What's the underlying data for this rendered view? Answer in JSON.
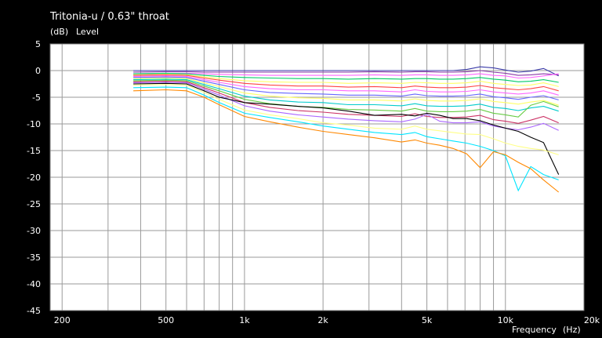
{
  "chart_data": {
    "type": "line",
    "title": "Tritonia-u / 0.63\" throat",
    "ylabel_unit": "(dB)",
    "ylabel": "Level",
    "xlabel": "Frequency",
    "xlabel_unit": "(Hz)",
    "x_scale": "log",
    "xlim": [
      180,
      20000
    ],
    "ylim": [
      -45,
      5
    ],
    "grid": true,
    "x_ticks": [
      {
        "value": 200,
        "label": "200"
      },
      {
        "value": 500,
        "label": "500"
      },
      {
        "value": 1000,
        "label": "1k"
      },
      {
        "value": 2000,
        "label": "2k"
      },
      {
        "value": 5000,
        "label": "5k"
      },
      {
        "value": 10000,
        "label": "10k"
      },
      {
        "value": 20000,
        "label": "20k"
      }
    ],
    "y_ticks": [
      5,
      0,
      -5,
      -10,
      -15,
      -20,
      -25,
      -30,
      -35,
      -40,
      -45
    ],
    "x": [
      375,
      500,
      600,
      700,
      800,
      1000,
      1250,
      1600,
      2000,
      2500,
      3150,
      4000,
      4500,
      5000,
      5600,
      6300,
      7100,
      8000,
      9000,
      10000,
      11200,
      12500,
      14000,
      16000
    ],
    "series": [
      {
        "color": "#3a3aa8",
        "values": [
          0.0,
          0.0,
          0.0,
          0.0,
          0.0,
          0.0,
          0.0,
          0.0,
          0.0,
          0.0,
          0.0,
          0.0,
          0.0,
          0.0,
          0.0,
          0.0,
          0.2,
          0.7,
          0.5,
          0.1,
          -0.3,
          -0.1,
          0.4,
          -1.0
        ]
      },
      {
        "color": "#8a3aa8",
        "values": [
          -0.3,
          -0.2,
          -0.2,
          -0.3,
          -0.3,
          -0.3,
          -0.3,
          -0.3,
          -0.3,
          -0.3,
          -0.2,
          -0.3,
          -0.2,
          -0.2,
          -0.3,
          -0.3,
          -0.2,
          0.0,
          -0.3,
          -0.5,
          -0.9,
          -0.8,
          -0.6,
          -0.8
        ]
      },
      {
        "color": "#ff66ff",
        "values": [
          -0.6,
          -0.5,
          -0.5,
          -0.6,
          -0.7,
          -0.8,
          -0.9,
          -0.9,
          -0.9,
          -0.9,
          -0.8,
          -0.9,
          -0.8,
          -0.8,
          -0.9,
          -0.9,
          -0.8,
          -0.6,
          -0.9,
          -1.0,
          -1.4,
          -1.3,
          -1.0,
          -0.6
        ]
      },
      {
        "color": "#00cc66",
        "values": [
          -0.6,
          -0.5,
          -0.6,
          -0.9,
          -1.1,
          -1.3,
          -1.4,
          -1.5,
          -1.5,
          -1.6,
          -1.5,
          -1.6,
          -1.5,
          -1.5,
          -1.6,
          -1.6,
          -1.5,
          -1.3,
          -1.6,
          -1.8,
          -2.1,
          -2.0,
          -1.7,
          -2.2
        ]
      },
      {
        "color": "#ffff66",
        "values": [
          -0.8,
          -0.7,
          -0.8,
          -1.2,
          -1.5,
          -1.9,
          -2.1,
          -2.2,
          -2.2,
          -2.4,
          -2.3,
          -2.4,
          -2.2,
          -2.3,
          -2.4,
          -2.4,
          -2.3,
          -2.0,
          -2.4,
          -2.6,
          -2.8,
          -2.7,
          -2.3,
          -3.0
        ]
      },
      {
        "color": "#ff4444",
        "values": [
          -0.9,
          -0.8,
          -0.9,
          -1.4,
          -1.8,
          -2.4,
          -2.7,
          -2.9,
          -2.9,
          -3.1,
          -3.0,
          -3.2,
          -2.9,
          -3.1,
          -3.2,
          -3.2,
          -3.1,
          -2.8,
          -3.2,
          -3.4,
          -3.6,
          -3.4,
          -3.0,
          -3.8
        ]
      },
      {
        "color": "#ff66ff",
        "values": [
          -1.1,
          -1.0,
          -1.1,
          -1.7,
          -2.2,
          -3.0,
          -3.4,
          -3.6,
          -3.6,
          -3.8,
          -3.8,
          -4.0,
          -3.6,
          -3.9,
          -4.0,
          -4.0,
          -3.9,
          -3.6,
          -4.0,
          -4.2,
          -4.4,
          -4.2,
          -3.8,
          -4.6
        ]
      },
      {
        "color": "#6666ff",
        "values": [
          -1.3,
          -1.2,
          -1.3,
          -2.0,
          -2.6,
          -3.6,
          -4.1,
          -4.3,
          -4.4,
          -4.6,
          -4.6,
          -4.8,
          -4.4,
          -4.7,
          -4.8,
          -4.8,
          -4.7,
          -4.4,
          -4.9,
          -5.1,
          -5.4,
          -5.0,
          -4.7,
          -5.5
        ]
      },
      {
        "color": "#ffff66",
        "values": [
          -1.5,
          -1.4,
          -1.5,
          -2.3,
          -3.0,
          -4.2,
          -4.8,
          -5.1,
          -5.2,
          -5.5,
          -5.5,
          -5.7,
          -5.3,
          -5.6,
          -5.7,
          -5.7,
          -5.6,
          -5.3,
          -5.8,
          -6.0,
          -6.3,
          -5.9,
          -5.6,
          -6.5
        ]
      },
      {
        "color": "#00cccc",
        "values": [
          -1.7,
          -1.6,
          -1.7,
          -2.6,
          -3.4,
          -4.8,
          -5.5,
          -5.9,
          -6.0,
          -6.4,
          -6.4,
          -6.6,
          -6.2,
          -6.6,
          -6.7,
          -6.7,
          -6.6,
          -6.3,
          -6.9,
          -7.1,
          -7.5,
          -7.0,
          -6.7,
          -7.6
        ]
      },
      {
        "color": "#66cc44",
        "values": [
          -1.9,
          -1.8,
          -1.9,
          -2.9,
          -3.8,
          -5.4,
          -6.2,
          -6.7,
          -6.9,
          -7.3,
          -7.4,
          -7.6,
          -7.1,
          -7.6,
          -7.7,
          -7.7,
          -7.6,
          -7.3,
          -8.0,
          -8.3,
          -8.7,
          -6.5,
          -5.8,
          -6.8
        ]
      },
      {
        "color": "#cc3366",
        "values": [
          -2.1,
          -2.0,
          -2.1,
          -3.2,
          -4.2,
          -6.0,
          -6.9,
          -7.5,
          -7.8,
          -8.2,
          -8.4,
          -8.6,
          -8.1,
          -8.6,
          -8.8,
          -8.8,
          -8.7,
          -8.4,
          -9.2,
          -9.5,
          -9.9,
          -9.3,
          -8.6,
          -9.8
        ]
      },
      {
        "color": "#aa66ff",
        "values": [
          -2.3,
          -2.2,
          -2.3,
          -3.5,
          -4.6,
          -6.6,
          -7.6,
          -8.3,
          -8.7,
          -9.1,
          -9.4,
          -9.6,
          -9.1,
          -8.2,
          -9.5,
          -9.8,
          -9.8,
          -9.6,
          -10.4,
          -10.8,
          -11.1,
          -10.6,
          -9.9,
          -11.2
        ]
      },
      {
        "color": "#000000",
        "values": [
          -2.5,
          -2.4,
          -2.5,
          -3.8,
          -5.0,
          -6.0,
          -6.3,
          -6.7,
          -7.0,
          -7.6,
          -8.4,
          -8.2,
          -8.5,
          -8.0,
          -8.4,
          -9.0,
          -9.0,
          -9.4,
          -10.2,
          -10.8,
          -11.4,
          -12.5,
          -13.5,
          -19.5
        ]
      },
      {
        "color": "#ffff88",
        "values": [
          -2.7,
          -2.6,
          -2.7,
          -4.1,
          -5.4,
          -7.4,
          -8.3,
          -9.0,
          -9.8,
          -10.2,
          -10.8,
          -11.0,
          -10.4,
          -11.0,
          -11.3,
          -11.6,
          -11.9,
          -12.0,
          -12.8,
          -13.6,
          -14.2,
          -14.6,
          -14.9,
          -15.8
        ]
      },
      {
        "color": "#00e5ff",
        "values": [
          -3.2,
          -3.1,
          -3.2,
          -4.6,
          -6.0,
          -8.0,
          -8.8,
          -9.6,
          -10.4,
          -11.0,
          -11.6,
          -12.0,
          -11.6,
          -12.4,
          -12.8,
          -13.2,
          -13.6,
          -14.2,
          -15.0,
          -16.0,
          -22.5,
          -18.0,
          -19.5,
          -20.5
        ]
      },
      {
        "color": "#ff8800",
        "values": [
          -3.8,
          -3.6,
          -3.8,
          -5.0,
          -6.4,
          -8.6,
          -9.6,
          -10.6,
          -11.4,
          -12.0,
          -12.6,
          -13.4,
          -13.0,
          -13.6,
          -14.0,
          -14.6,
          -15.6,
          -18.2,
          -15.2,
          -15.8,
          -17.2,
          -18.4,
          -20.5,
          -22.8
        ]
      }
    ]
  }
}
